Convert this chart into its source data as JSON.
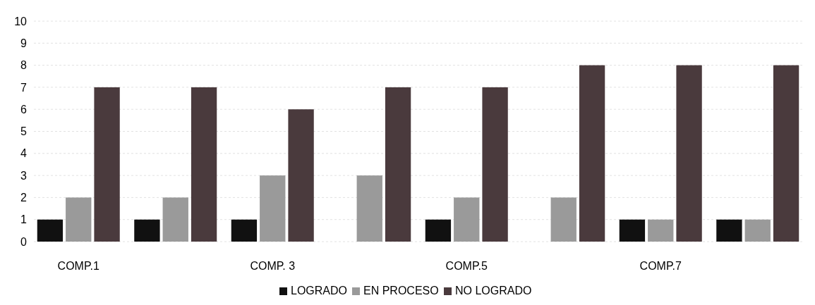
{
  "chart_data": {
    "type": "bar",
    "categories": [
      "COMP.1",
      null,
      "COMP. 3",
      null,
      "COMP.5",
      null,
      "COMP.7",
      null
    ],
    "series": [
      {
        "name": "LOGRADO",
        "color": "#111111",
        "values": [
          1,
          1,
          1,
          0,
          1,
          0,
          1,
          1
        ]
      },
      {
        "name": "EN PROCESO",
        "color": "#9a9a9a",
        "values": [
          2,
          2,
          3,
          3,
          2,
          2,
          1,
          1
        ]
      },
      {
        "name": "NO LOGRADO",
        "color": "#4a3a3d",
        "values": [
          7,
          7,
          6,
          7,
          7,
          8,
          8,
          8
        ]
      }
    ],
    "ylim": [
      0,
      10
    ],
    "yticks": [
      0,
      1,
      2,
      3,
      4,
      5,
      6,
      7,
      8,
      9,
      10
    ],
    "grid": "y",
    "legend": "bottom"
  }
}
